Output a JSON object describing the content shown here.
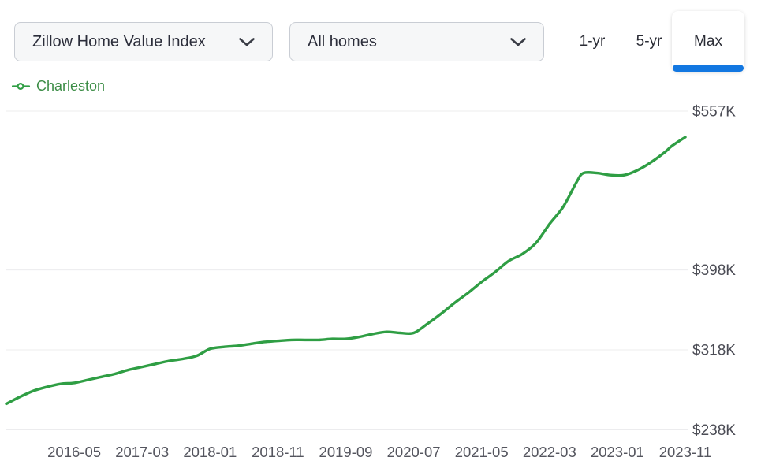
{
  "header": {
    "metric_dropdown": {
      "value": "Zillow Home Value Index"
    },
    "home_type_dropdown": {
      "value": "All homes"
    },
    "range_tabs": [
      {
        "label": "1-yr",
        "active": false
      },
      {
        "label": "5-yr",
        "active": false
      },
      {
        "label": "Max",
        "active": true
      }
    ]
  },
  "legend": {
    "series_label": "Charleston"
  },
  "colors": {
    "series_green": "#2f9e44",
    "legend_green_text": "#3c8d46",
    "accent_blue": "#1277e1",
    "gridline": "#ececee",
    "axis_label_gray": "#54555e"
  },
  "chart_data": {
    "type": "line",
    "unit": "USD thousands",
    "legend_position": "top-left",
    "y_axis_side": "right",
    "grid": "horizontal-only",
    "x_range": [
      "2015-07",
      "2023-11"
    ],
    "ylim": [
      238,
      557
    ],
    "y_ticks": [
      {
        "label": "$557K",
        "value": 557
      },
      {
        "label": "$398K",
        "value": 398
      },
      {
        "label": "$318K",
        "value": 318
      },
      {
        "label": "$238K",
        "value": 238
      }
    ],
    "x_ticks": [
      "2016-05",
      "2017-03",
      "2018-01",
      "2018-11",
      "2019-09",
      "2020-07",
      "2021-05",
      "2022-03",
      "2023-01",
      "2023-11"
    ],
    "series": [
      {
        "name": "Charleston",
        "color": "#2f9e44",
        "points": [
          [
            "2015-07",
            264
          ],
          [
            "2015-09",
            271
          ],
          [
            "2015-11",
            277
          ],
          [
            "2016-01",
            281
          ],
          [
            "2016-03",
            284
          ],
          [
            "2016-05",
            285
          ],
          [
            "2016-07",
            288
          ],
          [
            "2016-09",
            291
          ],
          [
            "2016-11",
            294
          ],
          [
            "2017-01",
            298
          ],
          [
            "2017-03",
            301
          ],
          [
            "2017-05",
            304
          ],
          [
            "2017-07",
            307
          ],
          [
            "2017-09",
            309
          ],
          [
            "2017-11",
            312
          ],
          [
            "2018-01",
            319
          ],
          [
            "2018-03",
            321
          ],
          [
            "2018-05",
            322
          ],
          [
            "2018-07",
            324
          ],
          [
            "2018-09",
            326
          ],
          [
            "2018-11",
            327
          ],
          [
            "2019-01",
            328
          ],
          [
            "2019-03",
            328
          ],
          [
            "2019-05",
            328
          ],
          [
            "2019-07",
            329
          ],
          [
            "2019-09",
            329
          ],
          [
            "2019-11",
            331
          ],
          [
            "2020-01",
            334
          ],
          [
            "2020-03",
            336
          ],
          [
            "2020-05",
            335
          ],
          [
            "2020-07",
            335
          ],
          [
            "2020-09",
            344
          ],
          [
            "2020-11",
            354
          ],
          [
            "2021-01",
            365
          ],
          [
            "2021-03",
            375
          ],
          [
            "2021-05",
            386
          ],
          [
            "2021-07",
            396
          ],
          [
            "2021-09",
            407
          ],
          [
            "2021-11",
            414
          ],
          [
            "2022-01",
            425
          ],
          [
            "2022-03",
            444
          ],
          [
            "2022-05",
            461
          ],
          [
            "2022-07",
            486
          ],
          [
            "2022-08",
            495
          ],
          [
            "2022-10",
            495
          ],
          [
            "2022-12",
            493
          ],
          [
            "2023-02",
            493
          ],
          [
            "2023-04",
            498
          ],
          [
            "2023-06",
            506
          ],
          [
            "2023-08",
            516
          ],
          [
            "2023-09",
            522
          ],
          [
            "2023-11",
            531
          ]
        ]
      }
    ]
  }
}
